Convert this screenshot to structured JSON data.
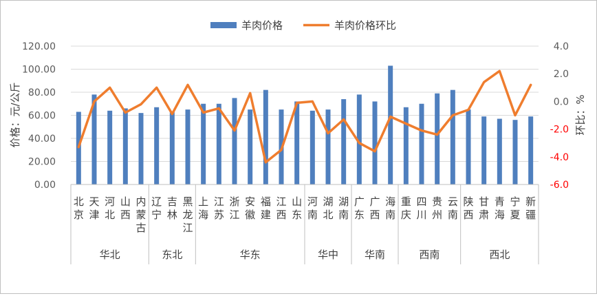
{
  "chart_data": {
    "type": "bar",
    "legend": {
      "position": "top",
      "entries": [
        "羊肉价格",
        "羊肉价格环比"
      ]
    },
    "colors": {
      "bar": "#4f7fbe",
      "line": "#ef7d2e",
      "right_axis_negative": "#ff0000",
      "grid": "#d9d9d9",
      "axis_text": "#595959"
    },
    "ylabel_left": "价格：元/公斤",
    "ylabel_right": "环比：%",
    "ylim_left": [
      0,
      120
    ],
    "ylim_right": [
      -6,
      4
    ],
    "left_ticks": [
      "0.00",
      "20.00",
      "40.00",
      "60.00",
      "80.00",
      "100.00",
      "120.00"
    ],
    "right_ticks": [
      "-6.0",
      "-4.0",
      "-2.0",
      "0.0",
      "2.0",
      "4.0"
    ],
    "categories": [
      "北京",
      "天津",
      "河北",
      "山西",
      "内蒙古",
      "辽宁",
      "吉林",
      "黑龙江",
      "上海",
      "江苏",
      "浙江",
      "安徽",
      "福建",
      "江西",
      "山东",
      "河南",
      "湖北",
      "湖南",
      "广东",
      "广西",
      "海南",
      "重庆",
      "四川",
      "贵州",
      "云南",
      "陕西",
      "甘肃",
      "青海",
      "宁夏",
      "新疆"
    ],
    "groups": [
      {
        "name": "华北",
        "count": 5
      },
      {
        "name": "东北",
        "count": 3
      },
      {
        "name": "华东",
        "count": 7
      },
      {
        "name": "华中",
        "count": 3
      },
      {
        "name": "华南",
        "count": 3
      },
      {
        "name": "西南",
        "count": 4
      },
      {
        "name": "西北",
        "count": 5
      }
    ],
    "series": [
      {
        "name": "羊肉价格",
        "type": "bar",
        "axis": "left",
        "values": [
          63,
          78,
          64,
          66,
          62,
          67,
          63,
          65,
          70,
          70,
          75,
          65,
          82,
          65,
          72,
          64,
          65,
          74,
          78,
          72,
          103,
          67,
          70,
          79,
          82,
          65,
          59,
          57,
          56,
          59
        ]
      },
      {
        "name": "羊肉价格环比",
        "type": "line",
        "axis": "right",
        "values": [
          -3.3,
          0.0,
          1.0,
          -0.8,
          -0.2,
          1.0,
          -0.9,
          1.2,
          -0.8,
          -0.5,
          -2.1,
          0.6,
          -4.4,
          -3.5,
          -0.1,
          0.0,
          -2.3,
          -1.3,
          -3.0,
          -3.6,
          -1.1,
          -1.6,
          -2.1,
          -2.4,
          -1.0,
          -0.6,
          1.4,
          2.2,
          -1.0,
          1.2
        ]
      }
    ]
  }
}
